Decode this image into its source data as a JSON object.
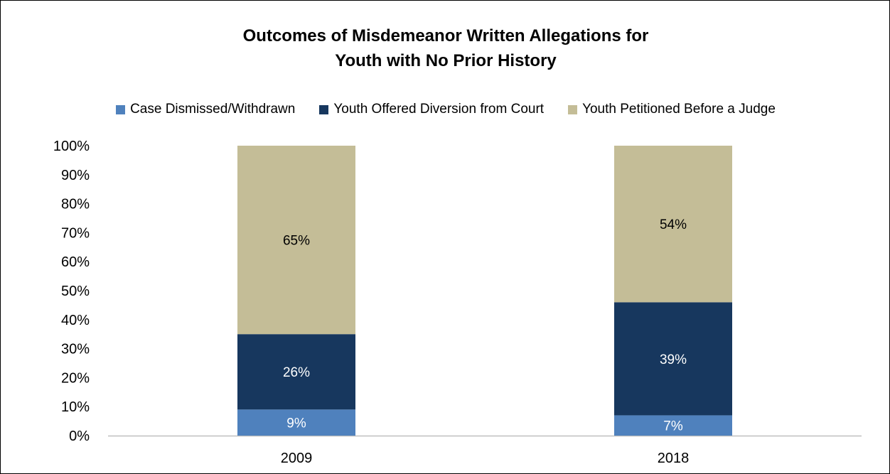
{
  "chart_data": {
    "type": "bar",
    "stacked": true,
    "title_lines": [
      "Outcomes of Misdemeanor Written Allegations for",
      "Youth with No Prior History"
    ],
    "categories": [
      "2009",
      "2018"
    ],
    "series": [
      {
        "name": "Case Dismissed/Withdrawn",
        "values": [
          9,
          7
        ],
        "labels": [
          "9%",
          "7%"
        ],
        "color": "#4f81bd",
        "label_color": "#ffffff"
      },
      {
        "name": "Youth Offered Diversion from Court",
        "values": [
          26,
          39
        ],
        "labels": [
          "26%",
          "39%"
        ],
        "color": "#17375e",
        "label_color": "#ffffff"
      },
      {
        "name": "Youth Petitioned Before a Judge",
        "values": [
          65,
          54
        ],
        "labels": [
          "65%",
          "54%"
        ],
        "color": "#c4bd97",
        "label_color": "#000000"
      }
    ],
    "y_ticks": [
      "0%",
      "10%",
      "20%",
      "30%",
      "40%",
      "50%",
      "60%",
      "70%",
      "80%",
      "90%",
      "100%"
    ],
    "ylim": [
      0,
      100
    ],
    "grid": false,
    "legend_position": "top"
  }
}
